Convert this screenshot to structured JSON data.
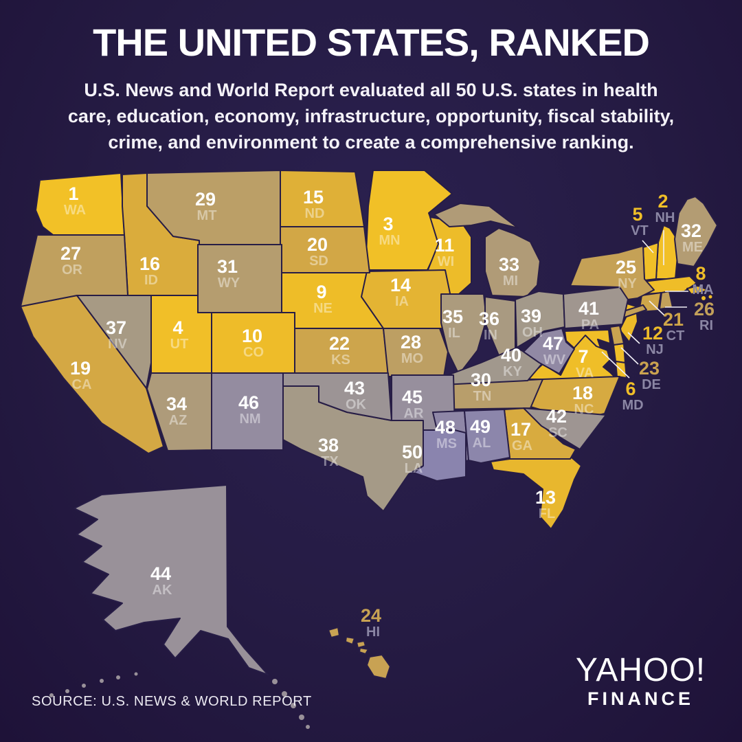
{
  "header": {
    "title": "THE UNITED STATES, RANKED",
    "subtitle_lines": [
      "U.S. News and World Report evaluated all 50 U.S. states in health",
      "care, education, economy, infrastructure, opportunity, fiscal stability,",
      "crime, and environment to create a comprehensive ranking."
    ]
  },
  "footer": {
    "source": "SOURCE:  U.S. NEWS & WORLD REPORT",
    "brand_top": "YAHOO!",
    "brand_bottom": "FINANCE"
  },
  "colors": {
    "background_center": "#2B2150",
    "background_edge": "#1E1238",
    "state_border": "#271D46",
    "rank_text": "#FFFFFF",
    "abbr_text_on_state": "rgba(255,255,255,0.42)",
    "callout_abbr_text": "#8B86A4",
    "callout_line": "#F2F0F6",
    "scale_stops": [
      {
        "rank": 1,
        "color": "#F2C127"
      },
      {
        "rank": 12,
        "color": "#EDBB29"
      },
      {
        "rank": 16,
        "color": "#DAAC3C"
      },
      {
        "rank": 20,
        "color": "#D2A746"
      },
      {
        "rank": 25,
        "color": "#C5A156"
      },
      {
        "rank": 30,
        "color": "#B89E6B"
      },
      {
        "rank": 33,
        "color": "#B09B77"
      },
      {
        "rank": 38,
        "color": "#A59A87"
      },
      {
        "rank": 43,
        "color": "#9C9495"
      },
      {
        "rank": 47,
        "color": "#9189A4"
      },
      {
        "rank": 50,
        "color": "#8A84AE"
      }
    ]
  },
  "chart_data": {
    "type": "choropleth_map",
    "title": "THE UNITED STATES, RANKED",
    "source": "U.S. NEWS & WORLD REPORT",
    "rankings": [
      {
        "rank": 1,
        "abbr": "WA"
      },
      {
        "rank": 2,
        "abbr": "NH"
      },
      {
        "rank": 3,
        "abbr": "MN"
      },
      {
        "rank": 4,
        "abbr": "UT"
      },
      {
        "rank": 5,
        "abbr": "VT"
      },
      {
        "rank": 6,
        "abbr": "MD"
      },
      {
        "rank": 7,
        "abbr": "VA"
      },
      {
        "rank": 8,
        "abbr": "MA"
      },
      {
        "rank": 9,
        "abbr": "NE"
      },
      {
        "rank": 10,
        "abbr": "CO"
      },
      {
        "rank": 11,
        "abbr": "WI"
      },
      {
        "rank": 12,
        "abbr": "NJ"
      },
      {
        "rank": 13,
        "abbr": "FL"
      },
      {
        "rank": 14,
        "abbr": "IA"
      },
      {
        "rank": 15,
        "abbr": "ND"
      },
      {
        "rank": 16,
        "abbr": "ID"
      },
      {
        "rank": 17,
        "abbr": "GA"
      },
      {
        "rank": 18,
        "abbr": "NC"
      },
      {
        "rank": 19,
        "abbr": "CA"
      },
      {
        "rank": 20,
        "abbr": "SD"
      },
      {
        "rank": 21,
        "abbr": "CT"
      },
      {
        "rank": 22,
        "abbr": "KS"
      },
      {
        "rank": 23,
        "abbr": "DE"
      },
      {
        "rank": 24,
        "abbr": "HI"
      },
      {
        "rank": 25,
        "abbr": "NY"
      },
      {
        "rank": 26,
        "abbr": "RI"
      },
      {
        "rank": 27,
        "abbr": "OR"
      },
      {
        "rank": 28,
        "abbr": "MO"
      },
      {
        "rank": 29,
        "abbr": "MT"
      },
      {
        "rank": 30,
        "abbr": "TN"
      },
      {
        "rank": 31,
        "abbr": "WY"
      },
      {
        "rank": 32,
        "abbr": "ME"
      },
      {
        "rank": 33,
        "abbr": "MI"
      },
      {
        "rank": 34,
        "abbr": "AZ"
      },
      {
        "rank": 35,
        "abbr": "IL"
      },
      {
        "rank": 36,
        "abbr": "IN"
      },
      {
        "rank": 37,
        "abbr": "NV"
      },
      {
        "rank": 38,
        "abbr": "TX"
      },
      {
        "rank": 39,
        "abbr": "OH"
      },
      {
        "rank": 40,
        "abbr": "KY"
      },
      {
        "rank": 41,
        "abbr": "PA"
      },
      {
        "rank": 42,
        "abbr": "SC"
      },
      {
        "rank": 43,
        "abbr": "OK"
      },
      {
        "rank": 44,
        "abbr": "AK"
      },
      {
        "rank": 45,
        "abbr": "AR"
      },
      {
        "rank": 46,
        "abbr": "NM"
      },
      {
        "rank": 47,
        "abbr": "WV"
      },
      {
        "rank": 48,
        "abbr": "MS"
      },
      {
        "rank": 49,
        "abbr": "AL"
      },
      {
        "rank": 50,
        "abbr": "LA"
      }
    ]
  }
}
